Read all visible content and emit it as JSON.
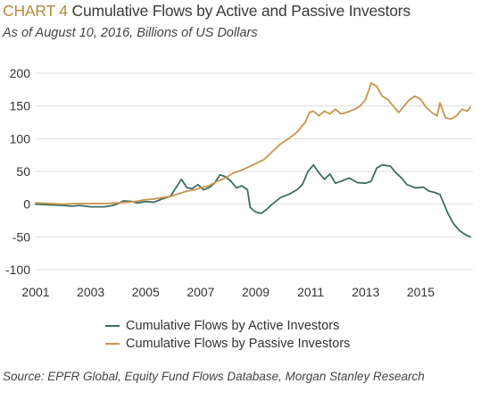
{
  "header": {
    "title_prefix": "CHART 4",
    "title_main": "Cumulative Flows by Active and Passive Investors",
    "subtitle": "As of August 10, 2016, Billions of US Dollars"
  },
  "footer": {
    "source": "Source: EPFR Global, Equity Fund Flows Database, Morgan Stanley Research"
  },
  "colors": {
    "accent": "#b48a3c",
    "active": "#3c6e62",
    "passive": "#c8964a",
    "grid": "#dddddd"
  },
  "chart_data": {
    "type": "line",
    "xlabel": "",
    "ylabel": "",
    "xlim": [
      2001,
      2016.9
    ],
    "ylim": [
      -100,
      200
    ],
    "x_ticks": [
      "2001",
      "2003",
      "2005",
      "2007",
      "2009",
      "2011",
      "2013",
      "2015"
    ],
    "x_tick_values": [
      2001,
      2003,
      2005,
      2007,
      2009,
      2011,
      2013,
      2015
    ],
    "y_ticks": [
      "200",
      "150",
      "100",
      "50",
      "0",
      "-50",
      "-100"
    ],
    "y_tick_values": [
      200,
      150,
      100,
      50,
      0,
      -50,
      -100
    ],
    "grid": true,
    "legend_position": "bottom",
    "series": [
      {
        "name": "Cumulative Flows by Active Investors",
        "color": "#3c6e62",
        "points": [
          [
            2001.0,
            0
          ],
          [
            2001.5,
            -1
          ],
          [
            2002.0,
            -2
          ],
          [
            2002.3,
            -3
          ],
          [
            2002.6,
            -2
          ],
          [
            2002.8,
            -3
          ],
          [
            2003.0,
            -4
          ],
          [
            2003.5,
            -4
          ],
          [
            2003.8,
            -2
          ],
          [
            2004.0,
            1
          ],
          [
            2004.2,
            5
          ],
          [
            2004.5,
            4
          ],
          [
            2004.7,
            2
          ],
          [
            2005.0,
            4
          ],
          [
            2005.3,
            3
          ],
          [
            2005.6,
            8
          ],
          [
            2005.9,
            12
          ],
          [
            2006.1,
            25
          ],
          [
            2006.3,
            38
          ],
          [
            2006.5,
            25
          ],
          [
            2006.7,
            24
          ],
          [
            2006.9,
            30
          ],
          [
            2007.1,
            22
          ],
          [
            2007.3,
            25
          ],
          [
            2007.5,
            32
          ],
          [
            2007.7,
            45
          ],
          [
            2007.9,
            42
          ],
          [
            2008.1,
            35
          ],
          [
            2008.3,
            25
          ],
          [
            2008.5,
            28
          ],
          [
            2008.7,
            22
          ],
          [
            2008.8,
            -5
          ],
          [
            2009.0,
            -12
          ],
          [
            2009.2,
            -14
          ],
          [
            2009.4,
            -8
          ],
          [
            2009.6,
            0
          ],
          [
            2009.9,
            10
          ],
          [
            2010.2,
            15
          ],
          [
            2010.5,
            22
          ],
          [
            2010.7,
            30
          ],
          [
            2010.9,
            50
          ],
          [
            2011.1,
            60
          ],
          [
            2011.3,
            48
          ],
          [
            2011.5,
            38
          ],
          [
            2011.7,
            46
          ],
          [
            2011.9,
            32
          ],
          [
            2012.1,
            35
          ],
          [
            2012.4,
            40
          ],
          [
            2012.7,
            33
          ],
          [
            2013.0,
            32
          ],
          [
            2013.2,
            35
          ],
          [
            2013.4,
            55
          ],
          [
            2013.6,
            60
          ],
          [
            2013.9,
            58
          ],
          [
            2014.1,
            48
          ],
          [
            2014.3,
            40
          ],
          [
            2014.5,
            30
          ],
          [
            2014.8,
            25
          ],
          [
            2015.1,
            26
          ],
          [
            2015.3,
            20
          ],
          [
            2015.5,
            18
          ],
          [
            2015.7,
            15
          ],
          [
            2015.8,
            5
          ],
          [
            2016.0,
            -15
          ],
          [
            2016.2,
            -30
          ],
          [
            2016.4,
            -40
          ],
          [
            2016.6,
            -46
          ],
          [
            2016.8,
            -50
          ]
        ]
      },
      {
        "name": "Cumulative Flows by Passive Investors",
        "color": "#c8964a",
        "points": [
          [
            2001.0,
            2
          ],
          [
            2001.5,
            1
          ],
          [
            2002.0,
            0
          ],
          [
            2002.5,
            1
          ],
          [
            2003.0,
            1
          ],
          [
            2003.5,
            1
          ],
          [
            2004.0,
            2
          ],
          [
            2004.3,
            3
          ],
          [
            2004.6,
            4
          ],
          [
            2005.0,
            7
          ],
          [
            2005.3,
            8
          ],
          [
            2005.6,
            10
          ],
          [
            2005.9,
            12
          ],
          [
            2006.2,
            16
          ],
          [
            2006.5,
            20
          ],
          [
            2006.8,
            22
          ],
          [
            2007.0,
            25
          ],
          [
            2007.3,
            28
          ],
          [
            2007.6,
            35
          ],
          [
            2007.9,
            40
          ],
          [
            2008.2,
            48
          ],
          [
            2008.5,
            52
          ],
          [
            2008.8,
            58
          ],
          [
            2009.0,
            62
          ],
          [
            2009.3,
            68
          ],
          [
            2009.6,
            80
          ],
          [
            2009.9,
            92
          ],
          [
            2010.2,
            100
          ],
          [
            2010.5,
            110
          ],
          [
            2010.8,
            125
          ],
          [
            2010.95,
            140
          ],
          [
            2011.1,
            142
          ],
          [
            2011.3,
            135
          ],
          [
            2011.5,
            142
          ],
          [
            2011.7,
            138
          ],
          [
            2011.9,
            145
          ],
          [
            2012.1,
            138
          ],
          [
            2012.3,
            140
          ],
          [
            2012.6,
            145
          ],
          [
            2012.8,
            150
          ],
          [
            2013.0,
            160
          ],
          [
            2013.2,
            185
          ],
          [
            2013.4,
            180
          ],
          [
            2013.6,
            165
          ],
          [
            2013.8,
            160
          ],
          [
            2014.0,
            150
          ],
          [
            2014.2,
            140
          ],
          [
            2014.4,
            150
          ],
          [
            2014.6,
            160
          ],
          [
            2014.8,
            165
          ],
          [
            2015.0,
            160
          ],
          [
            2015.2,
            148
          ],
          [
            2015.4,
            140
          ],
          [
            2015.6,
            135
          ],
          [
            2015.7,
            155
          ],
          [
            2015.9,
            132
          ],
          [
            2016.1,
            130
          ],
          [
            2016.3,
            135
          ],
          [
            2016.5,
            145
          ],
          [
            2016.7,
            142
          ],
          [
            2016.8,
            148
          ]
        ]
      }
    ]
  }
}
